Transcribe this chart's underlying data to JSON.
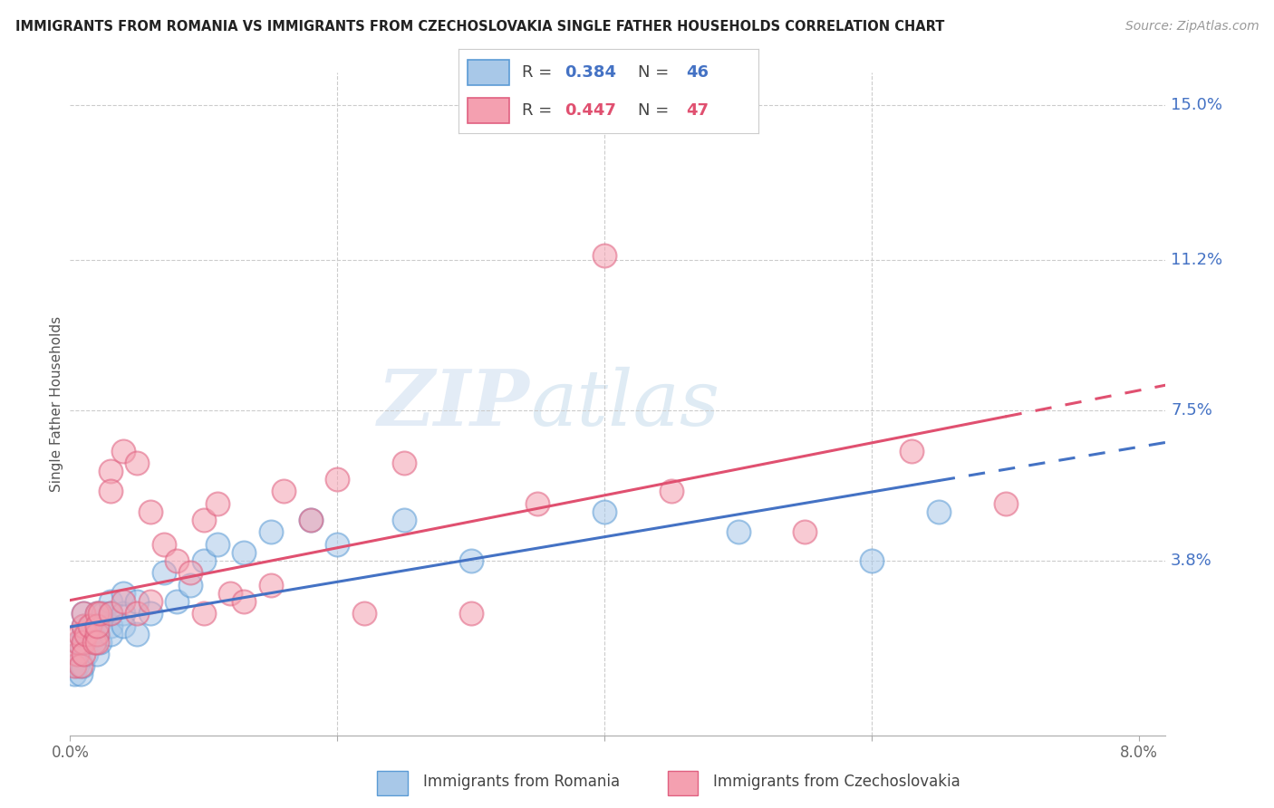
{
  "title": "IMMIGRANTS FROM ROMANIA VS IMMIGRANTS FROM CZECHOSLOVAKIA SINGLE FATHER HOUSEHOLDS CORRELATION CHART",
  "source": "Source: ZipAtlas.com",
  "ylabel": "Single Father Households",
  "yticks_right": [
    0.038,
    0.075,
    0.112,
    0.15
  ],
  "ytick_labels_right": [
    "3.8%",
    "7.5%",
    "11.2%",
    "15.0%"
  ],
  "xlim": [
    0.0,
    0.082
  ],
  "ylim": [
    -0.005,
    0.158
  ],
  "romania_R": 0.384,
  "romania_N": 46,
  "czechoslovakia_R": 0.447,
  "czechoslovakia_N": 47,
  "romania_color": "#a8c8e8",
  "czechoslovakia_color": "#f4a0b0",
  "romania_edge_color": "#5b9bd5",
  "czechoslovakia_edge_color": "#e06080",
  "trend_romania_color": "#4472c4",
  "trend_czechoslovakia_color": "#e05070",
  "romania_x": [
    0.0003,
    0.0005,
    0.0006,
    0.0007,
    0.0008,
    0.0009,
    0.001,
    0.001,
    0.001,
    0.001,
    0.0012,
    0.0013,
    0.0015,
    0.0016,
    0.0018,
    0.002,
    0.002,
    0.002,
    0.002,
    0.0022,
    0.0025,
    0.003,
    0.003,
    0.003,
    0.003,
    0.004,
    0.004,
    0.004,
    0.005,
    0.005,
    0.006,
    0.007,
    0.008,
    0.009,
    0.01,
    0.011,
    0.013,
    0.015,
    0.018,
    0.02,
    0.025,
    0.03,
    0.04,
    0.05,
    0.06,
    0.065
  ],
  "romania_y": [
    0.01,
    0.012,
    0.015,
    0.018,
    0.01,
    0.012,
    0.018,
    0.02,
    0.022,
    0.025,
    0.015,
    0.02,
    0.02,
    0.022,
    0.018,
    0.022,
    0.025,
    0.02,
    0.015,
    0.018,
    0.025,
    0.022,
    0.028,
    0.025,
    0.02,
    0.025,
    0.03,
    0.022,
    0.028,
    0.02,
    0.025,
    0.035,
    0.028,
    0.032,
    0.038,
    0.042,
    0.04,
    0.045,
    0.048,
    0.042,
    0.048,
    0.038,
    0.05,
    0.045,
    0.038,
    0.05
  ],
  "czechoslovakia_x": [
    0.0003,
    0.0005,
    0.0006,
    0.0007,
    0.0008,
    0.001,
    0.001,
    0.001,
    0.001,
    0.0012,
    0.0015,
    0.0018,
    0.002,
    0.002,
    0.002,
    0.002,
    0.0022,
    0.003,
    0.003,
    0.003,
    0.004,
    0.004,
    0.005,
    0.005,
    0.006,
    0.006,
    0.007,
    0.008,
    0.009,
    0.01,
    0.01,
    0.011,
    0.012,
    0.013,
    0.015,
    0.016,
    0.018,
    0.02,
    0.022,
    0.025,
    0.03,
    0.035,
    0.04,
    0.045,
    0.055,
    0.063,
    0.07
  ],
  "czechoslovakia_y": [
    0.012,
    0.015,
    0.018,
    0.02,
    0.012,
    0.022,
    0.018,
    0.025,
    0.015,
    0.02,
    0.022,
    0.018,
    0.025,
    0.02,
    0.018,
    0.022,
    0.025,
    0.06,
    0.055,
    0.025,
    0.065,
    0.028,
    0.062,
    0.025,
    0.05,
    0.028,
    0.042,
    0.038,
    0.035,
    0.048,
    0.025,
    0.052,
    0.03,
    0.028,
    0.032,
    0.055,
    0.048,
    0.058,
    0.025,
    0.062,
    0.025,
    0.052,
    0.113,
    0.055,
    0.045,
    0.065,
    0.052
  ],
  "watermark_zip": "ZIP",
  "watermark_atlas": "atlas",
  "background_color": "#ffffff",
  "grid_color": "#cccccc"
}
